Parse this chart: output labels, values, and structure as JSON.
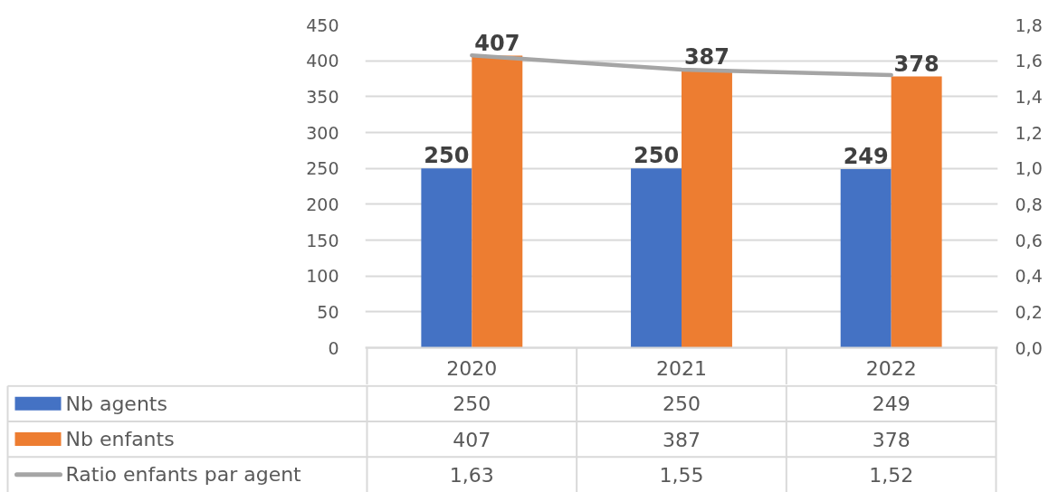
{
  "chart_data": {
    "type": "bar",
    "categories": [
      "2020",
      "2021",
      "2022"
    ],
    "series": [
      {
        "name": "Nb agents",
        "color": "#4472c4",
        "values": [
          250,
          250,
          249
        ],
        "value_labels": [
          "250",
          "250",
          "249"
        ]
      },
      {
        "name": "Nb enfants",
        "color": "#ed7d31",
        "values": [
          407,
          387,
          378
        ],
        "value_labels": [
          "407",
          "387",
          "378"
        ]
      },
      {
        "name": "Ratio enfants par agent",
        "type": "line",
        "axis": "y2",
        "color": "#a5a5a5",
        "values": [
          1.63,
          1.55,
          1.52
        ],
        "value_labels": [
          "1,63",
          "1,55",
          "1,52"
        ]
      }
    ],
    "ylim": [
      0,
      450
    ],
    "yticks": [
      0,
      50,
      100,
      150,
      200,
      250,
      300,
      350,
      400,
      450
    ],
    "y2lim": [
      0,
      1.8
    ],
    "y2ticks": [
      {
        "value": 0,
        "label": "0,0"
      },
      {
        "value": 0.2,
        "label": "0,2"
      },
      {
        "value": 0.4,
        "label": "0,4"
      },
      {
        "value": 0.6,
        "label": "0,6"
      },
      {
        "value": 0.8,
        "label": "0,8"
      },
      {
        "value": 1.0,
        "label": "1,0"
      },
      {
        "value": 1.2,
        "label": "1,2"
      },
      {
        "value": 1.4,
        "label": "1,4"
      },
      {
        "value": 1.6,
        "label": "1,6"
      },
      {
        "value": 1.8,
        "label": "1,8"
      }
    ],
    "grid": "y",
    "legend": "bottom"
  }
}
